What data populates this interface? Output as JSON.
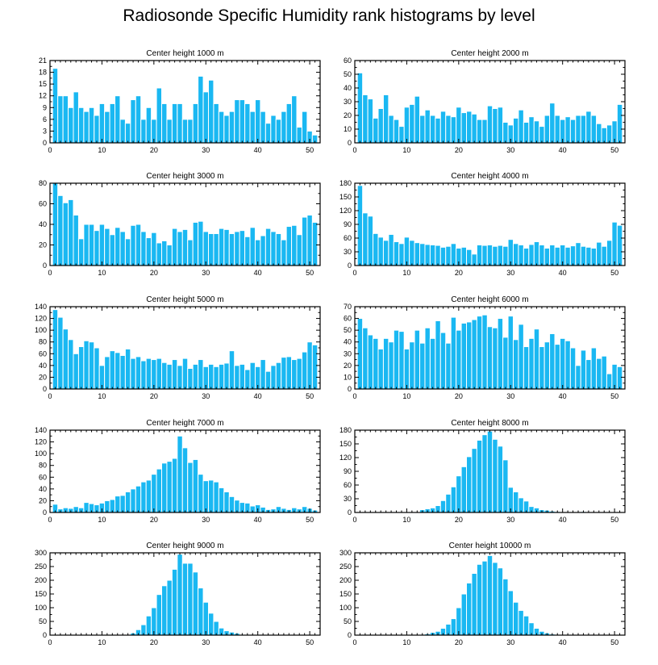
{
  "title": "Radiosonde Specific Humidity rank histograms by level",
  "colors": {
    "bar": "#1ab8f2",
    "bar_stroke": "#ffffff",
    "axis": "#000000"
  },
  "chart_data": [
    {
      "type": "bar",
      "title": "Center height 1000 m",
      "xlim": [
        0,
        52
      ],
      "xticks": [
        0,
        10,
        20,
        30,
        40,
        50
      ],
      "ylim": [
        0,
        21
      ],
      "yticks": [
        0,
        3,
        6,
        9,
        12,
        15,
        18,
        21
      ],
      "x": [
        1,
        2,
        3,
        4,
        5,
        6,
        7,
        8,
        9,
        10,
        11,
        12,
        13,
        14,
        15,
        16,
        17,
        18,
        19,
        20,
        21,
        22,
        23,
        24,
        25,
        26,
        27,
        28,
        29,
        30,
        31,
        32,
        33,
        34,
        35,
        36,
        37,
        38,
        39,
        40,
        41,
        42,
        43,
        44,
        45,
        46,
        47,
        48,
        49,
        50,
        51
      ],
      "values": [
        19,
        12,
        12,
        9,
        13,
        9,
        8,
        9,
        7,
        10,
        8,
        10,
        12,
        6,
        5,
        11,
        12,
        6,
        9,
        6,
        14,
        10,
        6,
        10,
        10,
        6,
        6,
        10,
        17,
        13,
        16,
        10,
        8,
        7,
        8,
        11,
        11,
        10,
        8,
        11,
        8,
        5,
        7,
        6,
        8,
        10,
        12,
        4,
        8,
        3,
        2
      ]
    },
    {
      "type": "bar",
      "title": "Center height 2000 m",
      "xlim": [
        0,
        52
      ],
      "xticks": [
        0,
        10,
        20,
        30,
        40,
        50
      ],
      "ylim": [
        0,
        60
      ],
      "yticks": [
        0,
        10,
        20,
        30,
        40,
        50,
        60
      ],
      "x": [
        1,
        2,
        3,
        4,
        5,
        6,
        7,
        8,
        9,
        10,
        11,
        12,
        13,
        14,
        15,
        16,
        17,
        18,
        19,
        20,
        21,
        22,
        23,
        24,
        25,
        26,
        27,
        28,
        29,
        30,
        31,
        32,
        33,
        34,
        35,
        36,
        37,
        38,
        39,
        40,
        41,
        42,
        43,
        44,
        45,
        46,
        47,
        48,
        49,
        50,
        51
      ],
      "values": [
        51,
        35,
        32,
        18,
        25,
        35,
        20,
        17,
        12,
        26,
        28,
        34,
        20,
        24,
        20,
        18,
        23,
        20,
        19,
        26,
        22,
        23,
        21,
        17,
        17,
        27,
        25,
        26,
        15,
        13,
        18,
        24,
        15,
        19,
        16,
        12,
        20,
        29,
        20,
        17,
        19,
        17,
        20,
        20,
        23,
        20,
        14,
        11,
        13,
        16,
        28
      ]
    },
    {
      "type": "bar",
      "title": "Center height 3000 m",
      "xlim": [
        0,
        52
      ],
      "xticks": [
        0,
        10,
        20,
        30,
        40,
        50
      ],
      "ylim": [
        0,
        80
      ],
      "yticks": [
        0,
        20,
        40,
        60,
        80
      ],
      "x": [
        1,
        2,
        3,
        4,
        5,
        6,
        7,
        8,
        9,
        10,
        11,
        12,
        13,
        14,
        15,
        16,
        17,
        18,
        19,
        20,
        21,
        22,
        23,
        24,
        25,
        26,
        27,
        28,
        29,
        30,
        31,
        32,
        33,
        34,
        35,
        36,
        37,
        38,
        39,
        40,
        41,
        42,
        43,
        44,
        45,
        46,
        47,
        48,
        49,
        50,
        51
      ],
      "values": [
        80,
        68,
        61,
        64,
        49,
        26,
        40,
        40,
        34,
        40,
        36,
        30,
        37,
        33,
        26,
        39,
        40,
        33,
        27,
        32,
        22,
        24,
        20,
        36,
        33,
        35,
        25,
        42,
        43,
        33,
        31,
        31,
        36,
        35,
        31,
        33,
        34,
        28,
        37,
        25,
        29,
        36,
        33,
        31,
        25,
        38,
        39,
        30,
        47,
        49,
        42
      ]
    },
    {
      "type": "bar",
      "title": "Center height 4000 m",
      "xlim": [
        0,
        52
      ],
      "xticks": [
        0,
        10,
        20,
        30,
        40,
        50
      ],
      "ylim": [
        0,
        180
      ],
      "yticks": [
        0,
        30,
        60,
        90,
        120,
        150,
        180
      ],
      "x": [
        1,
        2,
        3,
        4,
        5,
        6,
        7,
        8,
        9,
        10,
        11,
        12,
        13,
        14,
        15,
        16,
        17,
        18,
        19,
        20,
        21,
        22,
        23,
        24,
        25,
        26,
        27,
        28,
        29,
        30,
        31,
        32,
        33,
        34,
        35,
        36,
        37,
        38,
        39,
        40,
        41,
        42,
        43,
        44,
        45,
        46,
        47,
        48,
        49,
        50,
        51
      ],
      "values": [
        175,
        115,
        108,
        70,
        62,
        55,
        68,
        52,
        48,
        62,
        55,
        50,
        48,
        46,
        45,
        44,
        40,
        42,
        48,
        38,
        40,
        35,
        25,
        45,
        44,
        45,
        42,
        44,
        42,
        57,
        48,
        45,
        38,
        46,
        52,
        45,
        38,
        45,
        40,
        45,
        40,
        43,
        50,
        42,
        40,
        38,
        51,
        42,
        55,
        95,
        88
      ]
    },
    {
      "type": "bar",
      "title": "Center height 5000 m",
      "xlim": [
        0,
        52
      ],
      "xticks": [
        0,
        10,
        20,
        30,
        40,
        50
      ],
      "ylim": [
        0,
        140
      ],
      "yticks": [
        0,
        20,
        40,
        60,
        80,
        100,
        120,
        140
      ],
      "x": [
        1,
        2,
        3,
        4,
        5,
        6,
        7,
        8,
        9,
        10,
        11,
        12,
        13,
        14,
        15,
        16,
        17,
        18,
        19,
        20,
        21,
        22,
        23,
        24,
        25,
        26,
        27,
        28,
        29,
        30,
        31,
        32,
        33,
        34,
        35,
        36,
        37,
        38,
        39,
        40,
        41,
        42,
        43,
        44,
        45,
        46,
        47,
        48,
        49,
        50,
        51
      ],
      "values": [
        135,
        122,
        102,
        84,
        60,
        72,
        82,
        80,
        70,
        40,
        55,
        65,
        62,
        57,
        68,
        52,
        55,
        48,
        52,
        50,
        52,
        45,
        42,
        50,
        40,
        52,
        35,
        42,
        50,
        38,
        42,
        38,
        42,
        44,
        65,
        40,
        42,
        33,
        45,
        38,
        50,
        30,
        40,
        45,
        54,
        55,
        50,
        52,
        63,
        80,
        75
      ]
    },
    {
      "type": "bar",
      "title": "Center height 6000 m",
      "xlim": [
        0,
        52
      ],
      "xticks": [
        0,
        10,
        20,
        30,
        40,
        50
      ],
      "ylim": [
        0,
        70
      ],
      "yticks": [
        0,
        10,
        20,
        30,
        40,
        50,
        60,
        70
      ],
      "x": [
        1,
        2,
        3,
        4,
        5,
        6,
        7,
        8,
        9,
        10,
        11,
        12,
        13,
        14,
        15,
        16,
        17,
        18,
        19,
        20,
        21,
        22,
        23,
        24,
        25,
        26,
        27,
        28,
        29,
        30,
        31,
        32,
        33,
        34,
        35,
        36,
        37,
        38,
        39,
        40,
        41,
        42,
        43,
        44,
        45,
        46,
        47,
        48,
        49,
        50,
        51
      ],
      "values": [
        60,
        52,
        46,
        43,
        34,
        43,
        40,
        50,
        49,
        34,
        40,
        50,
        39,
        52,
        43,
        58,
        48,
        39,
        61,
        50,
        56,
        57,
        59,
        62,
        63,
        53,
        52,
        60,
        44,
        62,
        42,
        55,
        36,
        43,
        51,
        36,
        40,
        47,
        38,
        43,
        41,
        35,
        20,
        33,
        25,
        35,
        26,
        28,
        13,
        21,
        19
      ]
    },
    {
      "type": "bar",
      "title": "Center height 7000 m",
      "xlim": [
        0,
        52
      ],
      "xticks": [
        0,
        10,
        20,
        30,
        40,
        50
      ],
      "ylim": [
        0,
        140
      ],
      "yticks": [
        0,
        20,
        40,
        60,
        80,
        100,
        120,
        140
      ],
      "x": [
        1,
        2,
        3,
        4,
        5,
        6,
        7,
        8,
        9,
        10,
        11,
        12,
        13,
        14,
        15,
        16,
        17,
        18,
        19,
        20,
        21,
        22,
        23,
        24,
        25,
        26,
        27,
        28,
        29,
        30,
        31,
        32,
        33,
        34,
        35,
        36,
        37,
        38,
        39,
        40,
        41,
        42,
        43,
        44,
        45,
        46,
        47,
        48,
        49,
        50,
        51
      ],
      "values": [
        14,
        6,
        8,
        7,
        10,
        8,
        17,
        15,
        13,
        16,
        20,
        22,
        28,
        29,
        35,
        40,
        45,
        52,
        55,
        65,
        74,
        84,
        87,
        92,
        130,
        110,
        85,
        90,
        65,
        54,
        55,
        52,
        42,
        35,
        27,
        21,
        17,
        16,
        11,
        13,
        9,
        5,
        6,
        10,
        7,
        5,
        8,
        6,
        10,
        7,
        4
      ]
    },
    {
      "type": "bar",
      "title": "Center height 8000 m",
      "xlim": [
        0,
        52
      ],
      "xticks": [
        0,
        10,
        20,
        30,
        40,
        50
      ],
      "ylim": [
        0,
        180
      ],
      "yticks": [
        0,
        30,
        60,
        90,
        120,
        150,
        180
      ],
      "x": [
        1,
        2,
        3,
        4,
        5,
        6,
        7,
        8,
        9,
        10,
        11,
        12,
        13,
        14,
        15,
        16,
        17,
        18,
        19,
        20,
        21,
        22,
        23,
        24,
        25,
        26,
        27,
        28,
        29,
        30,
        31,
        32,
        33,
        34,
        35,
        36,
        37,
        38,
        39,
        40,
        41,
        42,
        43,
        44,
        45,
        46,
        47,
        48,
        49,
        50,
        51
      ],
      "values": [
        0,
        0,
        0,
        0,
        0,
        0,
        0,
        0,
        0,
        0,
        0,
        1,
        6,
        8,
        10,
        15,
        26,
        40,
        56,
        80,
        100,
        122,
        140,
        158,
        170,
        178,
        160,
        145,
        115,
        55,
        45,
        32,
        25,
        13,
        10,
        6,
        5,
        3,
        2,
        1,
        1,
        0,
        1,
        2,
        1,
        0,
        0,
        0,
        0,
        0,
        0
      ]
    },
    {
      "type": "bar",
      "title": "Center height 9000 m",
      "xlim": [
        0,
        52
      ],
      "xticks": [
        0,
        10,
        20,
        30,
        40,
        50
      ],
      "ylim": [
        0,
        300
      ],
      "yticks": [
        0,
        50,
        100,
        150,
        200,
        250,
        300
      ],
      "x": [
        1,
        2,
        3,
        4,
        5,
        6,
        7,
        8,
        9,
        10,
        11,
        12,
        13,
        14,
        15,
        16,
        17,
        18,
        19,
        20,
        21,
        22,
        23,
        24,
        25,
        26,
        27,
        28,
        29,
        30,
        31,
        32,
        33,
        34,
        35,
        36,
        37,
        38,
        39,
        40,
        41,
        42,
        43,
        44,
        45,
        46,
        47,
        48,
        49,
        50,
        51
      ],
      "values": [
        0,
        0,
        0,
        0,
        0,
        0,
        0,
        0,
        0,
        0,
        0,
        0,
        0,
        0,
        2,
        8,
        20,
        38,
        70,
        100,
        148,
        180,
        200,
        240,
        295,
        262,
        262,
        230,
        172,
        120,
        80,
        50,
        26,
        16,
        11,
        7,
        3,
        2,
        1,
        1,
        0,
        0,
        0,
        0,
        0,
        0,
        0,
        0,
        0,
        0,
        0
      ]
    },
    {
      "type": "bar",
      "title": "Center height 10000 m",
      "xlim": [
        0,
        52
      ],
      "xticks": [
        0,
        10,
        20,
        30,
        40,
        50
      ],
      "ylim": [
        0,
        300
      ],
      "yticks": [
        0,
        50,
        100,
        150,
        200,
        250,
        300
      ],
      "x": [
        1,
        2,
        3,
        4,
        5,
        6,
        7,
        8,
        9,
        10,
        11,
        12,
        13,
        14,
        15,
        16,
        17,
        18,
        19,
        20,
        21,
        22,
        23,
        24,
        25,
        26,
        27,
        28,
        29,
        30,
        31,
        32,
        33,
        34,
        35,
        36,
        37,
        38,
        39,
        40,
        41,
        42,
        43,
        44,
        45,
        46,
        47,
        48,
        49,
        50,
        51
      ],
      "values": [
        0,
        0,
        0,
        0,
        0,
        0,
        0,
        0,
        0,
        0,
        0,
        1,
        3,
        5,
        10,
        14,
        25,
        40,
        60,
        100,
        150,
        190,
        225,
        258,
        270,
        290,
        265,
        245,
        205,
        162,
        120,
        90,
        70,
        45,
        25,
        14,
        8,
        4,
        2,
        1,
        0,
        0,
        0,
        0,
        0,
        0,
        0,
        0,
        0,
        0,
        0
      ]
    }
  ]
}
